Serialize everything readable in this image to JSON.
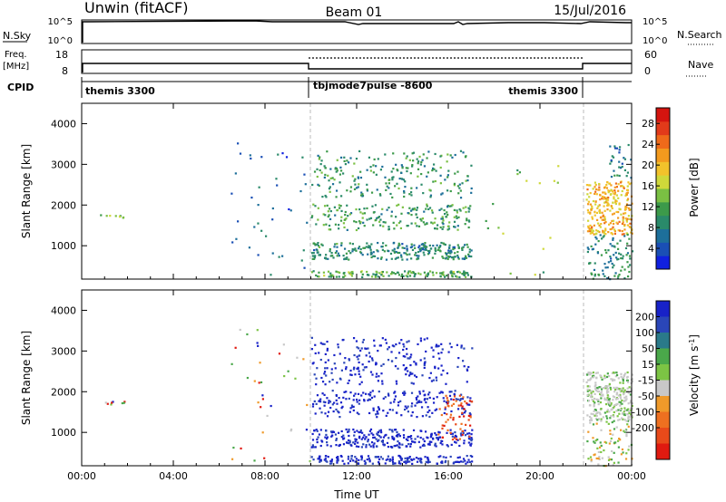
{
  "header": {
    "left": "Unwin (fitACF)",
    "center": "Beam 01",
    "right": "15/Jul/2016"
  },
  "left_labels": {
    "nsky": "N.Sky",
    "freq_line1": "Freq.",
    "freq_line2": "[MHz]",
    "cpid": "CPID"
  },
  "right_labels": {
    "nsearch": "N.Search",
    "nave": "Nave"
  },
  "nsky_ticks": [
    "10^5",
    "10^0"
  ],
  "freq_ticks": [
    "18",
    "8"
  ],
  "nave_ticks": [
    "60",
    "0"
  ],
  "cpid_segments": [
    "themis 3300",
    "tbjmode7pulse -8600",
    "themis 3300"
  ],
  "chart_data": [
    {
      "type": "scatter",
      "id": "power",
      "ylabel": "Slant Range [km]",
      "xlabel": "",
      "x_ticks": [
        "00:00",
        "04:00",
        "08:00",
        "12:00",
        "16:00",
        "20:00",
        "00:00"
      ],
      "y_ticks": [
        1000,
        2000,
        3000,
        4000
      ],
      "xlim_hours": [
        0,
        24
      ],
      "ylim_km": [
        180,
        4500
      ],
      "colorbar": {
        "label": "Power [dB]",
        "ticks": [
          4,
          8,
          12,
          16,
          20,
          24,
          28
        ],
        "range": [
          0,
          31
        ],
        "colors": [
          "#1020e0",
          "#1a4fb5",
          "#1d6f9a",
          "#2a8a6a",
          "#3c9a4a",
          "#7ac043",
          "#cfd83a",
          "#f2c22b",
          "#f39a1e",
          "#ef6a1a",
          "#e23a1a",
          "#d4140f"
        ]
      },
      "mode_boundaries_hours": [
        10.0,
        21.9
      ],
      "clusters": [
        {
          "x0": 0.8,
          "x1": 2.0,
          "y0": 1700,
          "y1": 1780,
          "val": 14,
          "n": 8
        },
        {
          "x0": 6.5,
          "x1": 10.0,
          "y0": 300,
          "y1": 3550,
          "val": 6,
          "n": 40
        },
        {
          "x0": 10.0,
          "x1": 17.0,
          "y0": 250,
          "y1": 400,
          "val": 12,
          "n": 140
        },
        {
          "x0": 10.0,
          "x1": 17.0,
          "y0": 680,
          "y1": 1100,
          "val": 9,
          "n": 260
        },
        {
          "x0": 10.0,
          "x1": 17.0,
          "y0": 1400,
          "y1": 2050,
          "val": 11,
          "n": 200
        },
        {
          "x0": 10.0,
          "x1": 17.0,
          "y0": 2200,
          "y1": 3350,
          "val": 10,
          "n": 220
        },
        {
          "x0": 17.0,
          "x1": 21.0,
          "y0": 300,
          "y1": 3100,
          "val": 14,
          "n": 18
        },
        {
          "x0": 22.0,
          "x1": 24.0,
          "y0": 1300,
          "y1": 2600,
          "val": 20,
          "n": 260
        },
        {
          "x0": 22.0,
          "x1": 24.0,
          "y0": 200,
          "y1": 1300,
          "val": 9,
          "n": 90
        },
        {
          "x0": 23.0,
          "x1": 24.0,
          "y0": 2600,
          "y1": 3500,
          "val": 7,
          "n": 30
        }
      ]
    },
    {
      "type": "scatter",
      "id": "velocity",
      "ylabel": "Slant Range [km]",
      "xlabel": "Time UT",
      "x_ticks": [
        "00:00",
        "04:00",
        "08:00",
        "12:00",
        "16:00",
        "20:00",
        "00:00"
      ],
      "y_ticks": [
        1000,
        2000,
        3000,
        4000
      ],
      "xlim_hours": [
        0,
        24
      ],
      "ylim_km": [
        180,
        4500
      ],
      "colorbar": {
        "label": "Velocity [m s^-1]",
        "ticks": [
          "200",
          "100",
          "50",
          "15",
          "-15",
          "-50",
          "-100",
          "-200"
        ],
        "colors": [
          "#1822c8",
          "#2a46b8",
          "#2a7a8a",
          "#4aa84a",
          "#7cc444",
          "#c8c8c8",
          "#ef9a2a",
          "#ee7020",
          "#e84a1a",
          "#e01a10"
        ]
      },
      "mode_boundaries_hours": [
        10.0,
        21.9
      ],
      "clusters": [
        {
          "x0": 0.8,
          "x1": 2.0,
          "y0": 1700,
          "y1": 1780,
          "val": "mixed",
          "n": 8
        },
        {
          "x0": 6.5,
          "x1": 10.0,
          "y0": 300,
          "y1": 3550,
          "val": "mixed",
          "n": 36
        },
        {
          "x0": 10.0,
          "x1": 17.0,
          "y0": 250,
          "y1": 450,
          "val": "toward",
          "n": 160
        },
        {
          "x0": 10.0,
          "x1": 17.0,
          "y0": 650,
          "y1": 1100,
          "val": "toward",
          "n": 260
        },
        {
          "x0": 10.0,
          "x1": 17.0,
          "y0": 1400,
          "y1": 2050,
          "val": "toward",
          "n": 200
        },
        {
          "x0": 10.0,
          "x1": 17.0,
          "y0": 2200,
          "y1": 3350,
          "val": "toward",
          "n": 220
        },
        {
          "x0": 15.5,
          "x1": 17.0,
          "y0": 850,
          "y1": 1950,
          "val": "away",
          "n": 60
        },
        {
          "x0": 22.0,
          "x1": 24.0,
          "y0": 1300,
          "y1": 2500,
          "val": "ground",
          "n": 300
        },
        {
          "x0": 22.0,
          "x1": 24.0,
          "y0": 200,
          "y1": 1300,
          "val": "slow",
          "n": 80
        }
      ]
    }
  ]
}
